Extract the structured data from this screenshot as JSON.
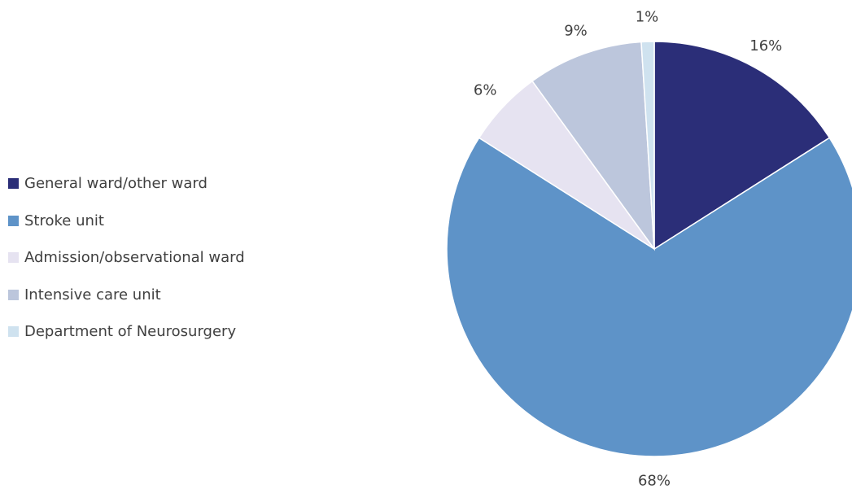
{
  "chart_data": {
    "type": "pie",
    "categories": [
      "General ward/other ward",
      "Stroke unit",
      "Admission/observational ward",
      "Intensive care unit",
      "Department of Neurosurgery"
    ],
    "values": [
      16,
      68,
      6,
      9,
      1
    ],
    "labels": [
      "16%",
      "68%",
      "6%",
      "9%",
      "1%"
    ],
    "colors": [
      "#2b2e78",
      "#5e93c8",
      "#e6e3f1",
      "#bcc6dc",
      "#cfe2ef"
    ],
    "title": "",
    "legend_position": "left",
    "start_angle": "12 o'clock, clockwise"
  }
}
